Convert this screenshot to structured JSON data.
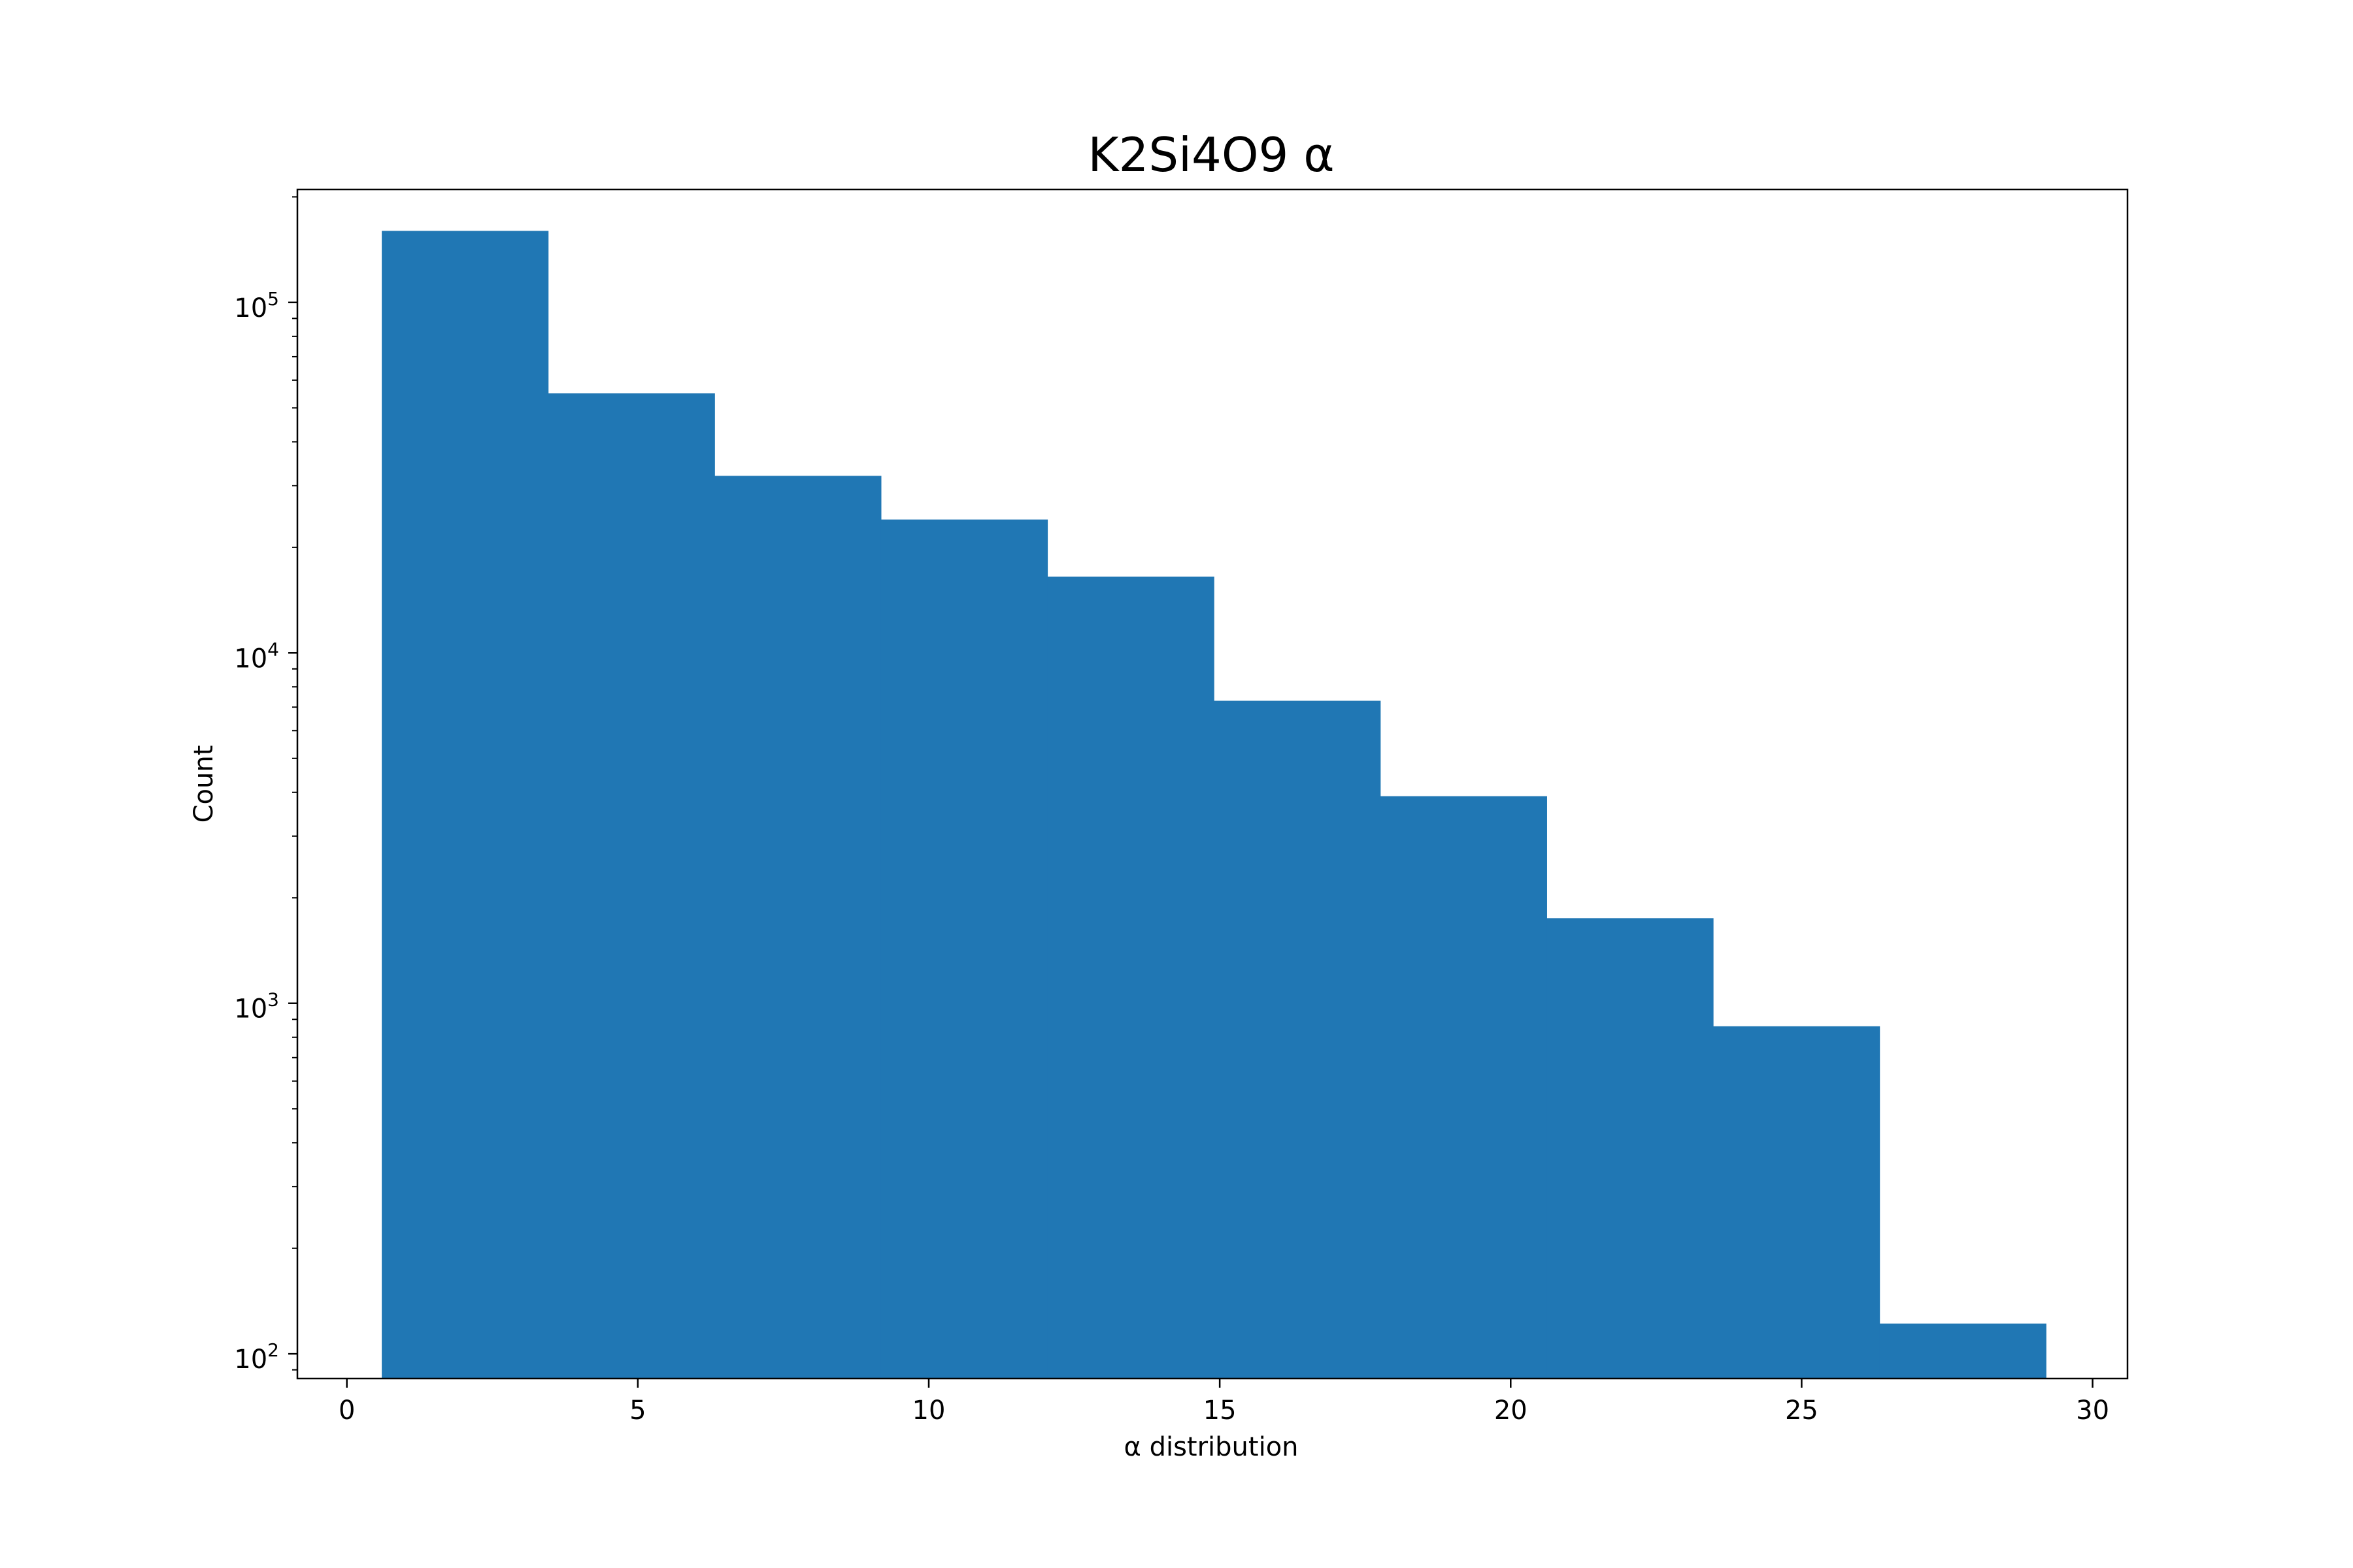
{
  "chart_data": {
    "type": "bar",
    "title": "K2Si4O9 α",
    "xlabel": "α distribution",
    "ylabel": "Count",
    "xlim": [
      -0.85,
      30.6
    ],
    "ylim": [
      85,
      210000
    ],
    "yscale": "log",
    "grid": false,
    "legend": false,
    "bar_color": "#2077b4",
    "bin_edges": [
      0.6,
      3.46,
      6.32,
      9.18,
      12.04,
      14.9,
      17.76,
      20.62,
      23.48,
      26.34,
      29.2
    ],
    "values": [
      160000,
      55000,
      32000,
      24000,
      16500,
      7300,
      3900,
      1750,
      860,
      122
    ],
    "x_ticks": [
      0,
      5,
      10,
      15,
      20,
      25,
      30
    ],
    "x_tick_labels": [
      "0",
      "5",
      "10",
      "15",
      "20",
      "25",
      "30"
    ],
    "y_ticks": [
      100,
      1000,
      10000,
      100000
    ],
    "y_tick_labels": [
      {
        "base": "10",
        "exp": "2"
      },
      {
        "base": "10",
        "exp": "3"
      },
      {
        "base": "10",
        "exp": "4"
      },
      {
        "base": "10",
        "exp": "5"
      }
    ]
  }
}
